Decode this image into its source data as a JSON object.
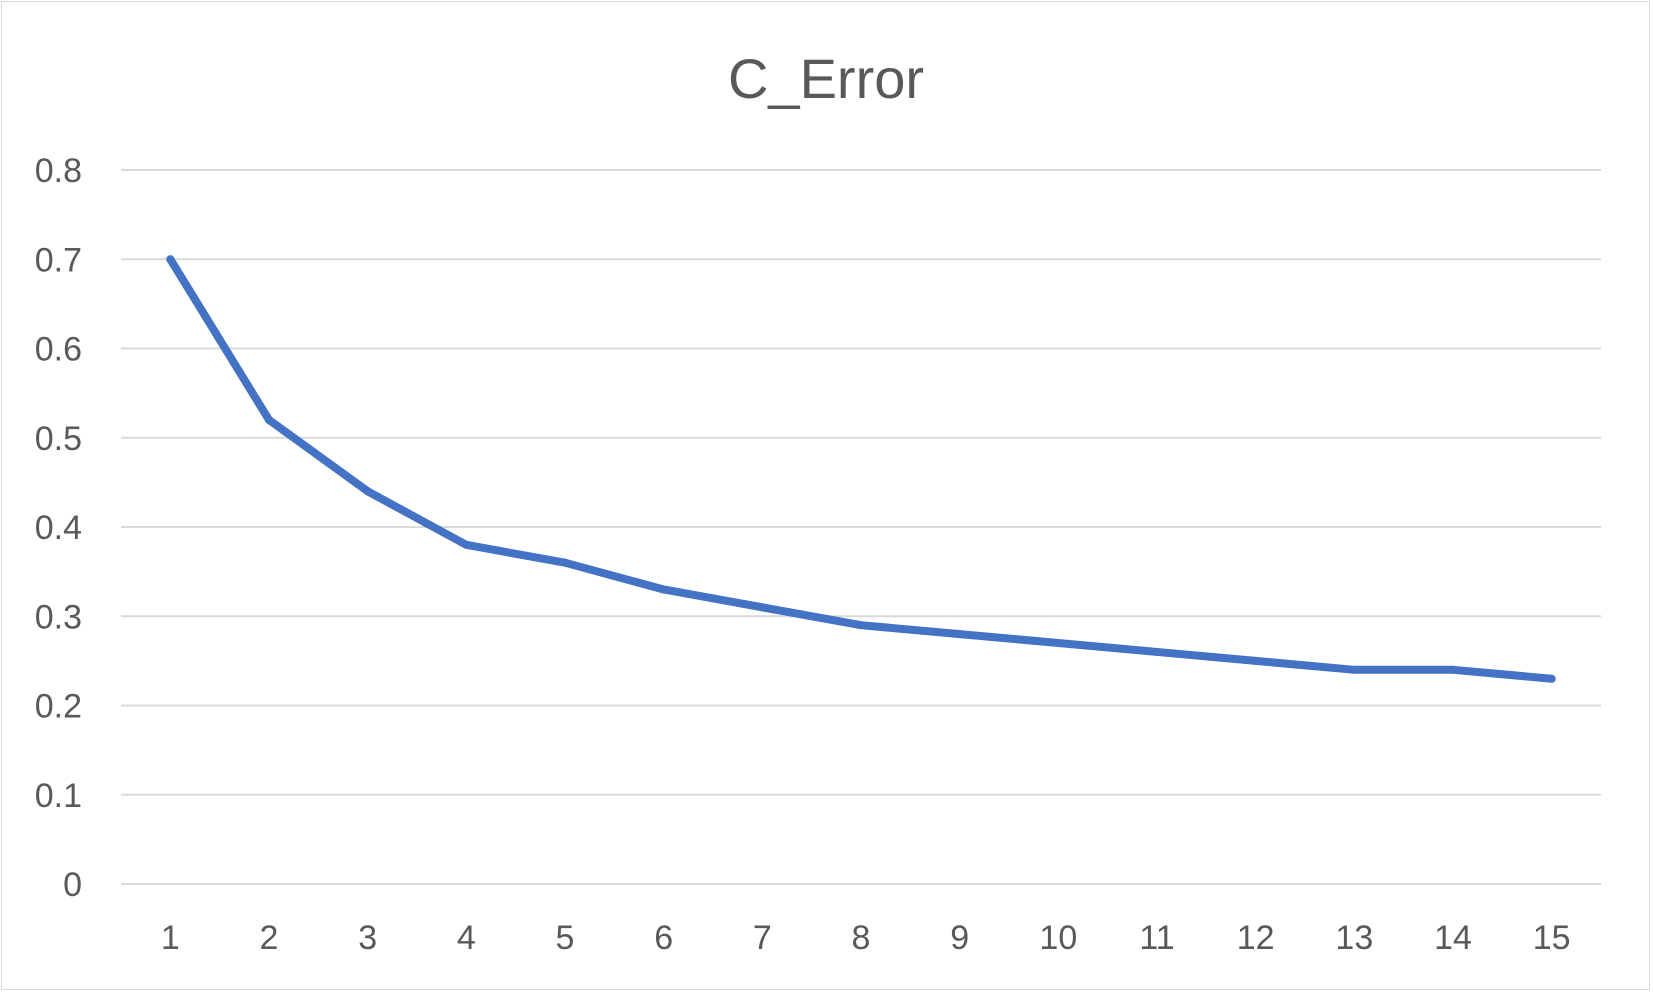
{
  "chart_data": {
    "type": "line",
    "title": "C_Error",
    "xlabel": "",
    "ylabel": "",
    "categories": [
      "1",
      "2",
      "3",
      "4",
      "5",
      "6",
      "7",
      "8",
      "9",
      "10",
      "11",
      "12",
      "13",
      "14",
      "15"
    ],
    "series": [
      {
        "values": [
          0.7,
          0.52,
          0.44,
          0.38,
          0.36,
          0.33,
          0.31,
          0.29,
          0.28,
          0.27,
          0.26,
          0.25,
          0.24,
          0.24,
          0.23
        ]
      }
    ],
    "ylim": [
      0,
      0.8
    ],
    "yticks": [
      "0",
      "0.1",
      "0.2",
      "0.3",
      "0.4",
      "0.5",
      "0.6",
      "0.7",
      "0.8"
    ],
    "grid": true,
    "legend": "none",
    "colors": {
      "line": "#4472c4",
      "grid": "#d9d9d9",
      "text": "#595959"
    }
  }
}
